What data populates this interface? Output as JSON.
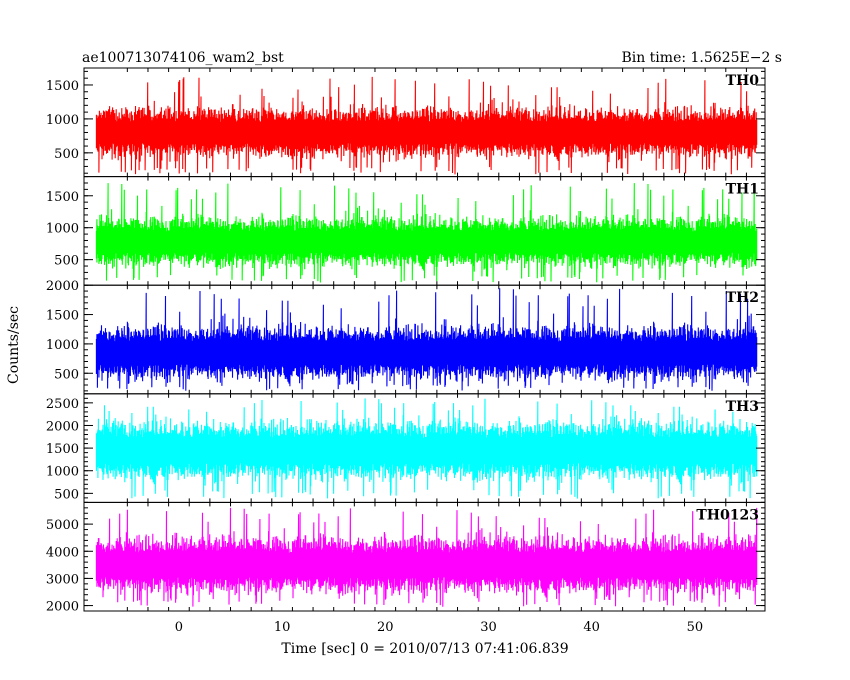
{
  "header": {
    "title": "ae100713074106_wam2_bst",
    "bin_time": "Bin time: 1.5625E−2 s"
  },
  "chart_data": {
    "type": "line",
    "xlabel": "Time [sec] 0 = 2010/07/13 07:41:06.839",
    "ylabel": "Counts/sec",
    "xlim": [
      -9.2,
      56.8
    ],
    "x_range_data": [
      -8,
      56
    ],
    "x_ticks": [
      0,
      10,
      20,
      30,
      40,
      50
    ],
    "grid": false,
    "panels": [
      {
        "name": "TH0",
        "color": "#ff0000",
        "ylim": [
          150,
          1750
        ],
        "yticks": [
          500,
          1000,
          1500
        ],
        "center": 800,
        "band": 280,
        "spike_max": 1620,
        "floor": 180
      },
      {
        "name": "TH1",
        "color": "#00ff00",
        "ylim": [
          100,
          1800
        ],
        "yticks": [
          500,
          1000,
          1500
        ],
        "center": 780,
        "band": 300,
        "spike_max": 1700,
        "floor": 140
      },
      {
        "name": "TH2",
        "color": "#0000ff",
        "ylim": [
          150,
          2000
        ],
        "yticks": [
          500,
          1000,
          1500,
          2000
        ],
        "center": 850,
        "band": 350,
        "spike_max": 1950,
        "floor": 200
      },
      {
        "name": "TH3",
        "color": "#00ffff",
        "ylim": [
          300,
          2700
        ],
        "yticks": [
          500,
          1000,
          1500,
          2000,
          2500
        ],
        "center": 1450,
        "band": 500,
        "spike_max": 2600,
        "floor": 380
      },
      {
        "name": "TH0123",
        "color": "#ff00ff",
        "ylim": [
          1800,
          5800
        ],
        "yticks": [
          2000,
          3000,
          4000,
          5000
        ],
        "center": 3500,
        "band": 800,
        "spike_max": 5600,
        "floor": 1950
      }
    ]
  }
}
